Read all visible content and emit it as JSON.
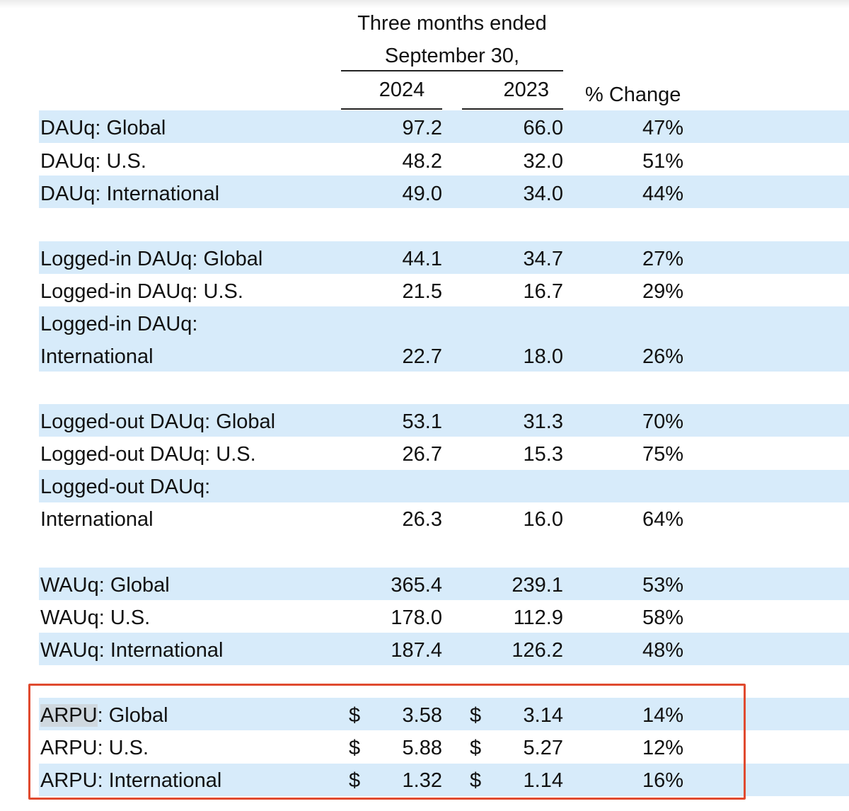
{
  "header": {
    "period_line1": "Three months ended",
    "period_line2": "September 30,",
    "year_current": "2024",
    "year_prior": "2023",
    "pct_change": "% Change"
  },
  "currency_symbol": "$",
  "rows": [
    {
      "label": "DAUq: Global",
      "y2024": "97.2",
      "y2023": "66.0",
      "change": "47%"
    },
    {
      "label": "DAUq: U.S.",
      "y2024": "48.2",
      "y2023": "32.0",
      "change": "51%"
    },
    {
      "label": "DAUq: International",
      "y2024": "49.0",
      "y2023": "34.0",
      "change": "44%"
    },
    {
      "label": "Logged-in DAUq: Global",
      "y2024": "44.1",
      "y2023": "34.7",
      "change": "27%"
    },
    {
      "label": "Logged-in DAUq: U.S.",
      "y2024": "21.5",
      "y2023": "16.7",
      "change": "29%"
    },
    {
      "label_line1": "Logged-in DAUq:",
      "label_line2": "International",
      "y2024": "22.7",
      "y2023": "18.0",
      "change": "26%"
    },
    {
      "label": "Logged-out DAUq: Global",
      "y2024": "53.1",
      "y2023": "31.3",
      "change": "70%"
    },
    {
      "label": "Logged-out DAUq: U.S.",
      "y2024": "26.7",
      "y2023": "15.3",
      "change": "75%"
    },
    {
      "label_line1": "Logged-out DAUq:",
      "label_line2": "International",
      "y2024": "26.3",
      "y2023": "16.0",
      "change": "64%"
    },
    {
      "label": "WAUq: Global",
      "y2024": "365.4",
      "y2023": "239.1",
      "change": "53%"
    },
    {
      "label": "WAUq: U.S.",
      "y2024": "178.0",
      "y2023": "112.9",
      "change": "58%"
    },
    {
      "label": "WAUq: International",
      "y2024": "187.4",
      "y2023": "126.2",
      "change": "48%"
    },
    {
      "label_highlight": "ARPU",
      "label_rest": ": Global",
      "y2024": "3.58",
      "y2023": "3.14",
      "change": "14%"
    },
    {
      "label": "ARPU: U.S.",
      "y2024": "5.88",
      "y2023": "5.27",
      "change": "12%"
    },
    {
      "label": "ARPU: International",
      "y2024": "1.32",
      "y2023": "1.14",
      "change": "16%"
    }
  ],
  "colors": {
    "row_band": "#d7ebfa",
    "highlight_box": "#e04a2f",
    "selected_text_bg": "#cfd8df"
  }
}
